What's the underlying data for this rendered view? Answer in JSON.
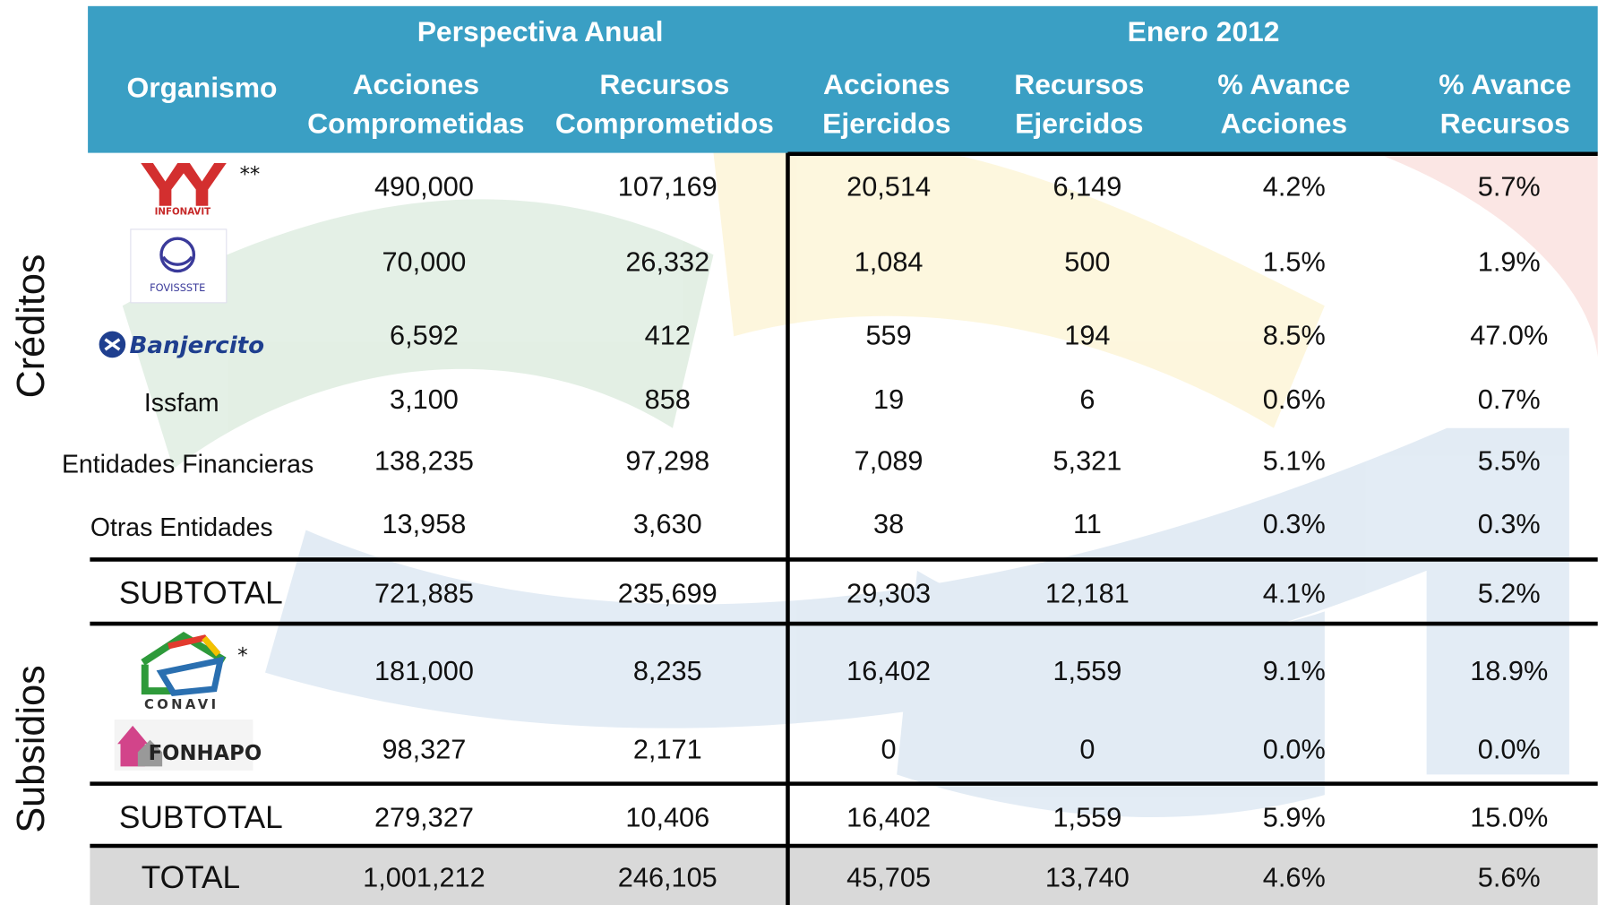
{
  "header": {
    "groups": [
      "Perspectiva Anual",
      "Enero 2012"
    ],
    "columns": [
      [
        "Organismo"
      ],
      [
        "Acciones",
        "Comprometidas"
      ],
      [
        "Recursos",
        "Comprometidos"
      ],
      [
        "Acciones",
        "Ejercidos"
      ],
      [
        "Recursos",
        "Ejercidos"
      ],
      [
        "% Avance",
        "Acciones"
      ],
      [
        "% Avance",
        "Recursos"
      ]
    ]
  },
  "side_labels": [
    "Créditos",
    "Subsidios"
  ],
  "rows": [
    {
      "organismo": "INFONAVIT",
      "note": "**",
      "cells": [
        "490,000",
        "107,169",
        "20,514",
        "6,149",
        "4.2%",
        "5.7%"
      ]
    },
    {
      "organismo": "FOVISSSTE",
      "cells": [
        "70,000",
        "26,332",
        "1,084",
        "500",
        "1.5%",
        "1.9%"
      ]
    },
    {
      "organismo": "Banjercito",
      "cells": [
        "6,592",
        "412",
        "559",
        "194",
        "8.5%",
        "47.0%"
      ]
    },
    {
      "organismo": "Issfam",
      "cells": [
        "3,100",
        "858",
        "19",
        "6",
        "0.6%",
        "0.7%"
      ]
    },
    {
      "organismo": "Entidades Financieras",
      "cells": [
        "138,235",
        "97,298",
        "7,089",
        "5,321",
        "5.1%",
        "5.5%"
      ]
    },
    {
      "organismo": "Otras Entidades",
      "cells": [
        "13,958",
        "3,630",
        "38",
        "11",
        "0.3%",
        "0.3%"
      ]
    },
    {
      "organismo": "SUBTOTAL",
      "cells": [
        "721,885",
        "235,699",
        "29,303",
        "12,181",
        "4.1%",
        "5.2%"
      ]
    },
    {
      "organismo": "CONAVI",
      "note": "*",
      "cells": [
        "181,000",
        "8,235",
        "16,402",
        "1,559",
        "9.1%",
        "18.9%"
      ]
    },
    {
      "organismo": "FONHAPO",
      "cells": [
        "98,327",
        "2,171",
        "0",
        "0",
        "0.0%",
        "0.0%"
      ]
    },
    {
      "organismo": "SUBTOTAL",
      "cells": [
        "279,327",
        "10,406",
        "16,402",
        "1,559",
        "5.9%",
        "15.0%"
      ]
    },
    {
      "organismo": "TOTAL",
      "cells": [
        "1,001,212",
        "246,105",
        "45,705",
        "13,740",
        "4.6%",
        "5.6%"
      ]
    }
  ]
}
